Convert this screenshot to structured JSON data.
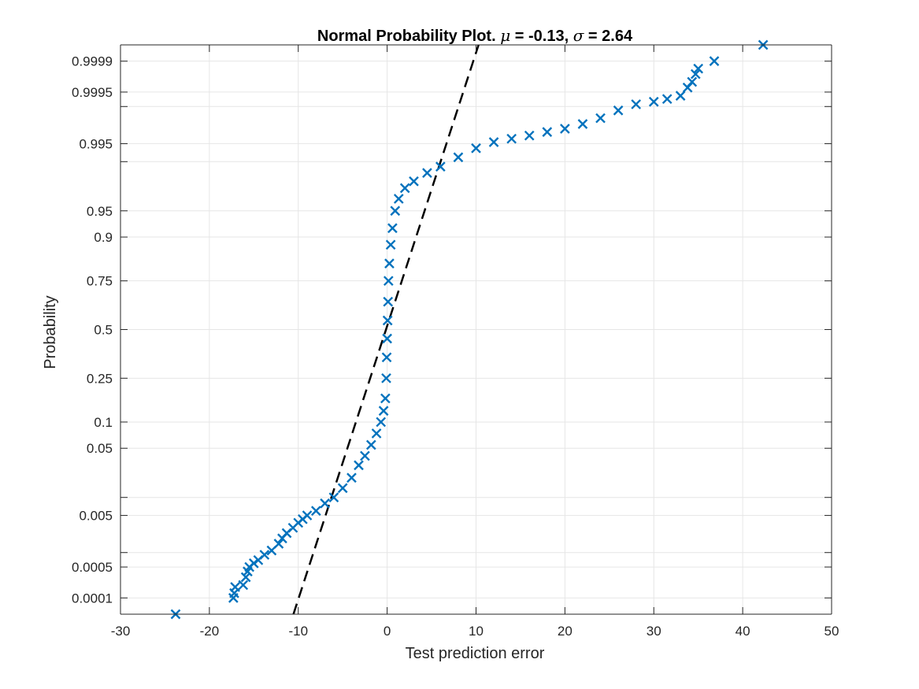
{
  "chart_data": {
    "type": "scatter",
    "title": "Normal Probability Plot. μ = -0.13, σ = 2.64",
    "title_parts": {
      "prefix": "Normal Probability Plot. ",
      "mu_symbol": "μ",
      "mu_text": " = -0.13, ",
      "sigma_symbol": "σ",
      "sigma_text": " = 2.64"
    },
    "xlabel": "Test prediction error",
    "ylabel": "Probability",
    "xlim": [
      -30,
      50
    ],
    "x_ticks": [
      -30,
      -20,
      -10,
      0,
      10,
      20,
      30,
      40,
      50
    ],
    "x_tick_labels": [
      "-30",
      "-20",
      "-10",
      "0",
      "10",
      "20",
      "30",
      "40",
      "50"
    ],
    "y_scale": "normal-probability",
    "ylim": [
      4e-05,
      0.99996
    ],
    "y_ticks": [
      0.0001,
      0.0005,
      0.005,
      0.05,
      0.1,
      0.25,
      0.5,
      0.75,
      0.9,
      0.95,
      0.995,
      0.9995,
      0.9999
    ],
    "y_tick_labels": [
      "0.0001",
      "0.0005",
      "0.005",
      "0.05",
      "0.1",
      "0.25",
      "0.5",
      "0.75",
      "0.9",
      "0.95",
      "0.995",
      "0.9995",
      "0.9999"
    ],
    "y_minor_ticks": [
      0.001,
      0.01,
      0.99,
      0.999
    ],
    "grid": true,
    "marker": "x",
    "marker_color": "#0072BD",
    "reference_line": {
      "style": "dashed",
      "color": "#000000",
      "mu": -0.13,
      "sigma": 2.64
    },
    "points": [
      [
        -23.8,
        4e-05
      ],
      [
        -17.3,
        0.0001
      ],
      [
        -17.2,
        0.00013
      ],
      [
        -17.1,
        0.00018
      ],
      [
        -16.2,
        0.0002
      ],
      [
        -15.9,
        0.0003
      ],
      [
        -15.7,
        0.0004
      ],
      [
        -15.5,
        0.0005
      ],
      [
        -15.0,
        0.0006
      ],
      [
        -14.5,
        0.0007
      ],
      [
        -13.8,
        0.0009
      ],
      [
        -13.0,
        0.0011
      ],
      [
        -12.2,
        0.0015
      ],
      [
        -11.8,
        0.0019
      ],
      [
        -11.3,
        0.0024
      ],
      [
        -10.6,
        0.003
      ],
      [
        -10.0,
        0.0037
      ],
      [
        -9.5,
        0.0043
      ],
      [
        -9.0,
        0.005
      ],
      [
        -8.0,
        0.006
      ],
      [
        -7.0,
        0.008
      ],
      [
        -6.0,
        0.01
      ],
      [
        -5.0,
        0.014
      ],
      [
        -4.0,
        0.02
      ],
      [
        -3.2,
        0.03
      ],
      [
        -2.5,
        0.04
      ],
      [
        -1.8,
        0.055
      ],
      [
        -1.2,
        0.075
      ],
      [
        -0.7,
        0.1
      ],
      [
        -0.4,
        0.13
      ],
      [
        -0.2,
        0.17
      ],
      [
        -0.1,
        0.25
      ],
      [
        -0.05,
        0.35
      ],
      [
        0.0,
        0.45
      ],
      [
        0.05,
        0.55
      ],
      [
        0.1,
        0.65
      ],
      [
        0.15,
        0.75
      ],
      [
        0.25,
        0.82
      ],
      [
        0.4,
        0.88
      ],
      [
        0.6,
        0.92
      ],
      [
        0.9,
        0.95
      ],
      [
        1.3,
        0.965
      ],
      [
        2.0,
        0.975
      ],
      [
        3.0,
        0.98
      ],
      [
        4.5,
        0.985
      ],
      [
        6.0,
        0.988
      ],
      [
        8.0,
        0.9915
      ],
      [
        10.0,
        0.994
      ],
      [
        12.0,
        0.9953
      ],
      [
        14.0,
        0.9959
      ],
      [
        16.0,
        0.9964
      ],
      [
        18.0,
        0.9969
      ],
      [
        20.0,
        0.9973
      ],
      [
        22.0,
        0.9978
      ],
      [
        24.0,
        0.9983
      ],
      [
        26.0,
        0.9988
      ],
      [
        28.0,
        0.9991
      ],
      [
        30.0,
        0.9992
      ],
      [
        31.5,
        0.9993
      ],
      [
        33.0,
        0.9994
      ],
      [
        33.8,
        0.9996
      ],
      [
        34.3,
        0.9997
      ],
      [
        34.7,
        0.9998
      ],
      [
        35.0,
        0.99985
      ],
      [
        36.8,
        0.9999
      ],
      [
        42.3,
        0.99996
      ]
    ]
  }
}
